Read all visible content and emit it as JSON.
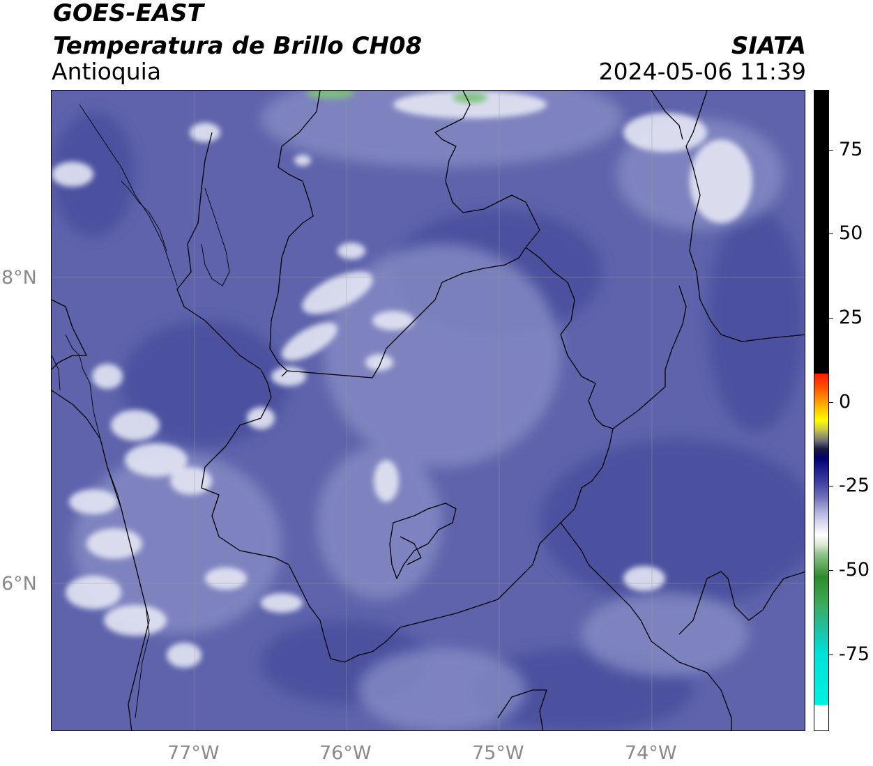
{
  "header": {
    "title_line1": "GOES-EAST",
    "title_line2": "Temperatura de Brillo CH08",
    "region": "Antioquia",
    "brand": "SIATA",
    "timestamp": "2024-05-06 11:39"
  },
  "axes": {
    "lon_labels": [
      "77°W",
      "76°W",
      "75°W",
      "74°W"
    ],
    "lat_labels": [
      "8°N",
      "6°N"
    ]
  },
  "colorbar": {
    "tick_labels": [
      "75",
      "50",
      "25",
      "0",
      "-25",
      "-50",
      "-75"
    ]
  },
  "colors": {
    "field_base": "#5e63ab",
    "field_dark": "#4a4f9e",
    "field_light": "#8e94c8",
    "cloud_white": "#e9eaf6",
    "boundary": "#000000",
    "grid": "#9a9a9a"
  }
}
